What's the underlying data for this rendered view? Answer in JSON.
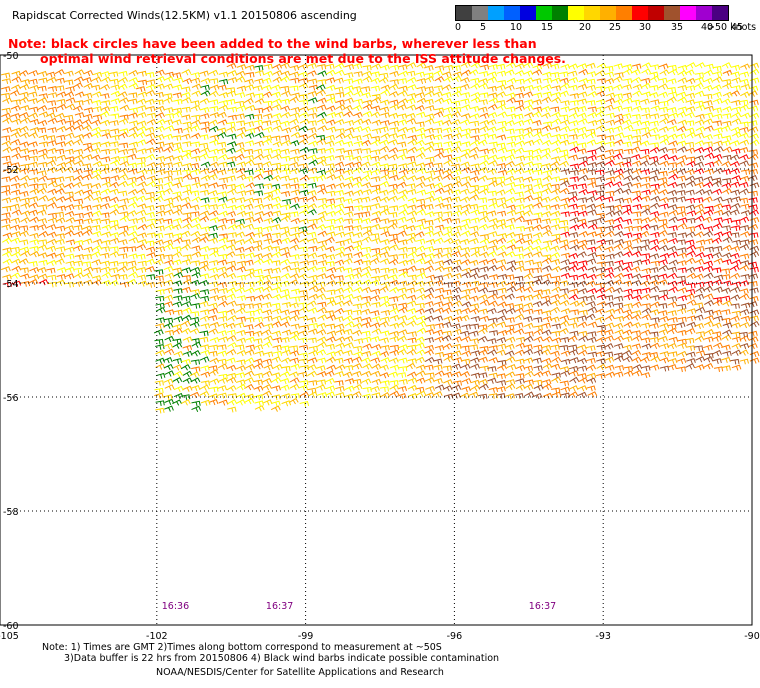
{
  "title": "Rapidscat Corrected Winds(12.5KM) v1.1 20150806 ascending",
  "note": {
    "line1": "Note: black circles have been added to the wind barbs, wherever less than",
    "line2": "optimal wind retrieval conditions are met due to the ISS attitude changes."
  },
  "colorbar": {
    "colors": [
      "#404040",
      "#808080",
      "#00a0ff",
      "#0060ff",
      "#0000e0",
      "#00c800",
      "#008000",
      "#ffff00",
      "#ffd700",
      "#ffb000",
      "#ff7f00",
      "#ff0000",
      "#c00000",
      "#a0522d",
      "#ff00ff",
      "#a000d0",
      "#4b0082"
    ],
    "labels": [
      "0",
      "5",
      "10",
      "15",
      "20",
      "25",
      "30",
      "35",
      "40",
      "45",
      ">50 knots"
    ]
  },
  "map": {
    "lon_ticks": [
      "-105",
      "-102",
      "-99",
      "-96",
      "-93",
      "-90"
    ],
    "lat_ticks": [
      "-50",
      "-52",
      "-54",
      "-56",
      "-58",
      "-60"
    ],
    "lon_range": [
      -105,
      -90
    ],
    "lat_range": [
      -60,
      -50
    ],
    "pass_times": [
      {
        "label": "16:36",
        "lon": -101.9
      },
      {
        "label": "16:37",
        "lon": -99.8
      },
      {
        "label": "16:37",
        "lon": -94.5
      }
    ]
  },
  "footer": {
    "note1": "Note: 1) Times are GMT 2)Times along bottom correspond to measurement at ~50S",
    "note2": "3)Data buffer is 22 hrs from 20150806 4) Black wind barbs indicate possible contamination",
    "credit": "NOAA/NESDIS/Center for Satellite Applications and Research"
  }
}
